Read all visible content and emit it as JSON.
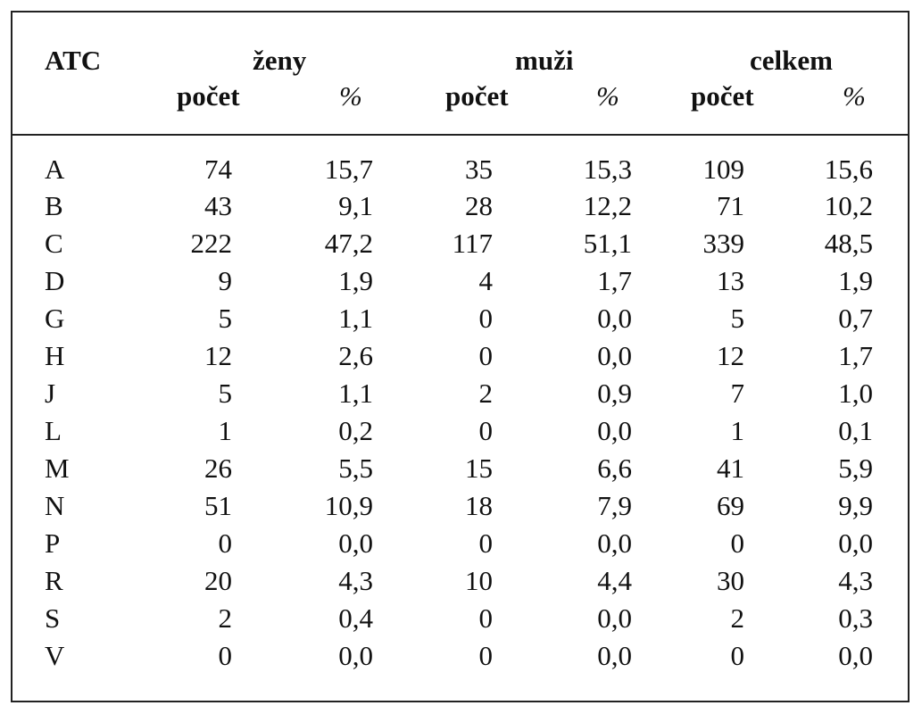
{
  "table": {
    "header": {
      "atc": "ATC",
      "groups": [
        "ženy",
        "muži",
        "celkem"
      ],
      "subheaders": [
        "počet",
        "%",
        "počet",
        "%",
        "počet",
        "%"
      ]
    },
    "rows": [
      {
        "atc": "A",
        "zeny_pocet": "74",
        "zeny_pct": "15,7",
        "muzi_pocet": "35",
        "muzi_pct": "15,3",
        "celkem_pocet": "109",
        "celkem_pct": "15,6"
      },
      {
        "atc": "B",
        "zeny_pocet": "43",
        "zeny_pct": "9,1",
        "muzi_pocet": "28",
        "muzi_pct": "12,2",
        "celkem_pocet": "71",
        "celkem_pct": "10,2"
      },
      {
        "atc": "C",
        "zeny_pocet": "222",
        "zeny_pct": "47,2",
        "muzi_pocet": "117",
        "muzi_pct": "51,1",
        "celkem_pocet": "339",
        "celkem_pct": "48,5"
      },
      {
        "atc": "D",
        "zeny_pocet": "9",
        "zeny_pct": "1,9",
        "muzi_pocet": "4",
        "muzi_pct": "1,7",
        "celkem_pocet": "13",
        "celkem_pct": "1,9"
      },
      {
        "atc": "G",
        "zeny_pocet": "5",
        "zeny_pct": "1,1",
        "muzi_pocet": "0",
        "muzi_pct": "0,0",
        "celkem_pocet": "5",
        "celkem_pct": "0,7"
      },
      {
        "atc": "H",
        "zeny_pocet": "12",
        "zeny_pct": "2,6",
        "muzi_pocet": "0",
        "muzi_pct": "0,0",
        "celkem_pocet": "12",
        "celkem_pct": "1,7"
      },
      {
        "atc": "J",
        "zeny_pocet": "5",
        "zeny_pct": "1,1",
        "muzi_pocet": "2",
        "muzi_pct": "0,9",
        "celkem_pocet": "7",
        "celkem_pct": "1,0"
      },
      {
        "atc": "L",
        "zeny_pocet": "1",
        "zeny_pct": "0,2",
        "muzi_pocet": "0",
        "muzi_pct": "0,0",
        "celkem_pocet": "1",
        "celkem_pct": "0,1"
      },
      {
        "atc": "M",
        "zeny_pocet": "26",
        "zeny_pct": "5,5",
        "muzi_pocet": "15",
        "muzi_pct": "6,6",
        "celkem_pocet": "41",
        "celkem_pct": "5,9"
      },
      {
        "atc": "N",
        "zeny_pocet": "51",
        "zeny_pct": "10,9",
        "muzi_pocet": "18",
        "muzi_pct": "7,9",
        "celkem_pocet": "69",
        "celkem_pct": "9,9"
      },
      {
        "atc": "P",
        "zeny_pocet": "0",
        "zeny_pct": "0,0",
        "muzi_pocet": "0",
        "muzi_pct": "0,0",
        "celkem_pocet": "0",
        "celkem_pct": "0,0"
      },
      {
        "atc": "R",
        "zeny_pocet": "20",
        "zeny_pct": "4,3",
        "muzi_pocet": "10",
        "muzi_pct": "4,4",
        "celkem_pocet": "30",
        "celkem_pct": "4,3"
      },
      {
        "atc": "S",
        "zeny_pocet": "2",
        "zeny_pct": "0,4",
        "muzi_pocet": "0",
        "muzi_pct": "0,0",
        "celkem_pocet": "2",
        "celkem_pct": "0,3"
      },
      {
        "atc": "V",
        "zeny_pocet": "0",
        "zeny_pct": "0,0",
        "muzi_pocet": "0",
        "muzi_pct": "0,0",
        "celkem_pocet": "0",
        "celkem_pct": "0,0"
      }
    ]
  }
}
